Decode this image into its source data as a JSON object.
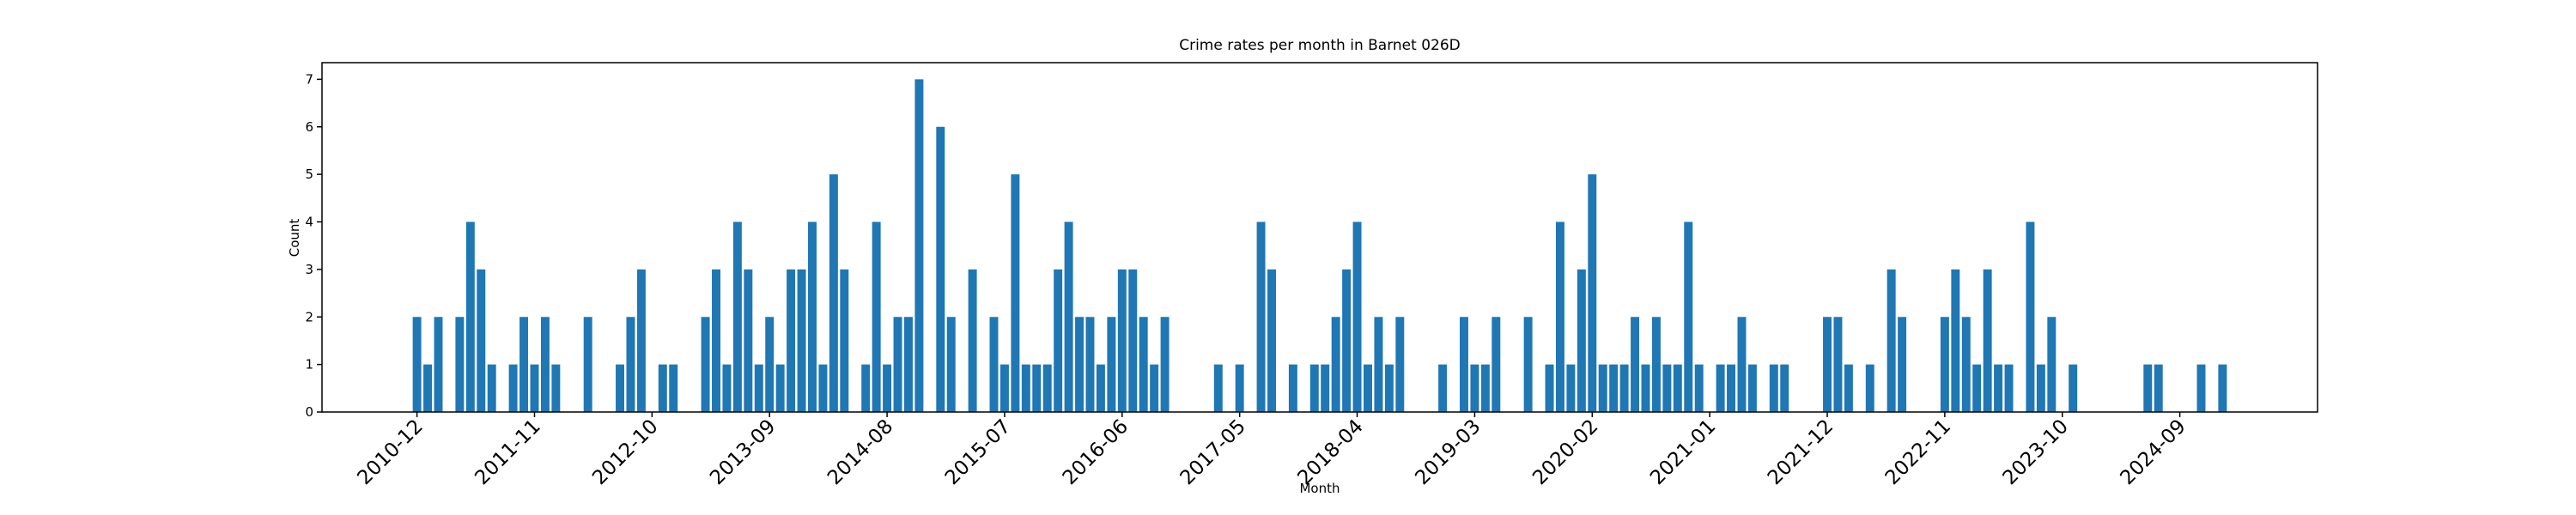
{
  "chart_data": {
    "type": "bar",
    "title": "Crime rates per month in Barnet 026D",
    "x_label": "Month",
    "y_label": "Count",
    "color": "#1f77b4",
    "categories": [
      "2010-12",
      null,
      null,
      null,
      null,
      null,
      null,
      null,
      null,
      null,
      null,
      "2011-11",
      null,
      null,
      null,
      null,
      null,
      null,
      null,
      null,
      null,
      null,
      "2012-10",
      null,
      null,
      null,
      null,
      null,
      null,
      null,
      null,
      null,
      null,
      "2013-09",
      null,
      null,
      null,
      null,
      null,
      null,
      null,
      null,
      null,
      null,
      "2014-08",
      null,
      null,
      null,
      null,
      null,
      null,
      null,
      null,
      null,
      null,
      "2015-07",
      null,
      null,
      null,
      null,
      null,
      null,
      null,
      null,
      null,
      null,
      "2016-06",
      null,
      null,
      null,
      null,
      null,
      null,
      null,
      null,
      null,
      null,
      "2017-05",
      null,
      null,
      null,
      null,
      null,
      null,
      null,
      null,
      null,
      null,
      "2018-04",
      null,
      null,
      null,
      null,
      null,
      null,
      null,
      null,
      null,
      null,
      "2019-03",
      null,
      null,
      null,
      null,
      null,
      null,
      null,
      null,
      null,
      null,
      "2020-02",
      null,
      null,
      null,
      null,
      null,
      null,
      null,
      null,
      null,
      null,
      "2021-01",
      null,
      null,
      null,
      null,
      null,
      null,
      null,
      null,
      null,
      null,
      "2021-12",
      null,
      null,
      null,
      null,
      null,
      null,
      null,
      null,
      null,
      null,
      "2022-11",
      null,
      null,
      null,
      null,
      null,
      null,
      null,
      null,
      null,
      null,
      "2023-10",
      null,
      null,
      null,
      null,
      null,
      null,
      null,
      null,
      null,
      null,
      "2024-09",
      null,
      null,
      null,
      null
    ],
    "values": [
      2,
      1,
      2,
      0,
      2,
      4,
      3,
      1,
      0,
      1,
      2,
      1,
      2,
      1,
      0,
      0,
      2,
      0,
      0,
      1,
      2,
      3,
      0,
      1,
      1,
      0,
      0,
      2,
      3,
      1,
      4,
      3,
      1,
      2,
      1,
      3,
      3,
      4,
      1,
      5,
      3,
      0,
      1,
      4,
      1,
      2,
      2,
      7,
      0,
      6,
      2,
      0,
      3,
      0,
      2,
      1,
      5,
      1,
      1,
      1,
      3,
      4,
      2,
      2,
      1,
      2,
      3,
      3,
      2,
      1,
      2,
      0,
      0,
      0,
      0,
      1,
      0,
      1,
      0,
      4,
      3,
      0,
      1,
      0,
      1,
      1,
      2,
      3,
      4,
      1,
      2,
      1,
      2,
      0,
      0,
      0,
      1,
      0,
      2,
      1,
      1,
      2,
      0,
      0,
      2,
      0,
      1,
      4,
      1,
      3,
      5,
      1,
      1,
      1,
      2,
      1,
      2,
      1,
      1,
      4,
      1,
      0,
      1,
      1,
      2,
      1,
      0,
      1,
      1,
      0,
      0,
      0,
      2,
      2,
      1,
      0,
      1,
      0,
      3,
      2,
      0,
      0,
      0,
      2,
      3,
      2,
      1,
      3,
      1,
      1,
      0,
      4,
      1,
      2,
      0,
      1,
      0,
      0,
      0,
      0,
      0,
      0,
      1,
      1,
      0,
      0,
      0,
      1,
      0,
      1
    ],
    "ylim": [
      0,
      7.35
    ],
    "yticks": [
      0,
      1,
      2,
      3,
      4,
      5,
      6,
      7
    ],
    "grid": false
  }
}
